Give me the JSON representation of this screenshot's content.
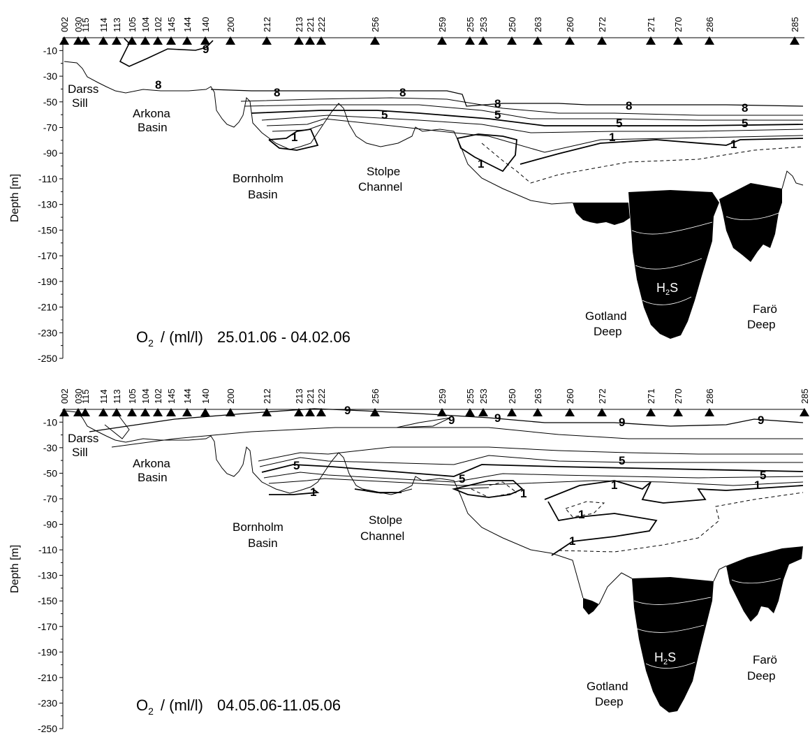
{
  "chart_data": [
    {
      "type": "contour-section",
      "caption": "25.01.06 - 04.02.06",
      "caption_lead": "O",
      "caption_sub": "2",
      "caption_unit": "/  (ml/l)",
      "ylabel": "Depth [m]",
      "ylim": [
        -250,
        0
      ],
      "yticks": [
        -10,
        -30,
        -50,
        -70,
        -90,
        -110,
        -130,
        -150,
        -170,
        -190,
        -210,
        -230,
        -250
      ],
      "stations": [
        "002",
        "030",
        "115",
        "114",
        "113",
        "105",
        "104",
        "102",
        "145",
        "144",
        "140",
        "200",
        "212",
        "213",
        "221",
        "222",
        "256",
        "259",
        "255",
        "253",
        "250",
        "263",
        "260",
        "272",
        "271",
        "270",
        "286",
        "285"
      ],
      "region_labels": {
        "darss_1": "Darss",
        "darss_2": "Sill",
        "arkona_1": "Arkona",
        "arkona_2": "Basin",
        "bornholm_1": "Bornholm",
        "bornholm_2": "Basin",
        "stolpe_1": "Stolpe",
        "stolpe_2": "Channel",
        "gotland_1": "Gotland",
        "gotland_2": "Deep",
        "faro_1": "Farö",
        "faro_2": "Deep",
        "h2s_main": "H",
        "h2s_sub": "2",
        "h2s_end": "S"
      },
      "contour_labels": {
        "l9": "9",
        "l8a": "8",
        "l8b": "8",
        "l8c": "8",
        "l8d": "8",
        "l8e": "8",
        "l8f": "8",
        "l5a": "5",
        "l5b": "5",
        "l5c": "5",
        "l5d": "5",
        "l1a": "1",
        "l1b": "1",
        "l1c": "1",
        "l1d": "1"
      }
    },
    {
      "type": "contour-section",
      "caption": "04.05.06-11.05.06",
      "caption_lead": "O",
      "caption_sub": "2",
      "caption_unit": "/  (ml/l)",
      "ylabel": "Depth [m]",
      "ylim": [
        -250,
        0
      ],
      "yticks": [
        -10,
        -30,
        -50,
        -70,
        -90,
        -110,
        -130,
        -150,
        -170,
        -190,
        -210,
        -230,
        -250
      ],
      "stations": [
        "002",
        "030",
        "115",
        "114",
        "113",
        "105",
        "104",
        "102",
        "145",
        "144",
        "140",
        "200",
        "212",
        "213",
        "221",
        "222",
        "256",
        "259",
        "255",
        "253",
        "250",
        "263",
        "260",
        "272",
        "271",
        "270",
        "286",
        "285"
      ],
      "region_labels": {
        "darss_1": "Darss",
        "darss_2": "Sill",
        "arkona_1": "Arkona",
        "arkona_2": "Basin",
        "bornholm_1": "Bornholm",
        "bornholm_2": "Basin",
        "stolpe_1": "Stolpe",
        "stolpe_2": "Channel",
        "gotland_1": "Gotland",
        "gotland_2": "Deep",
        "faro_1": "Farö",
        "faro_2": "Deep",
        "h2s_main": "H",
        "h2s_sub": "2",
        "h2s_end": "S"
      },
      "contour_labels": {
        "l9a": "9",
        "l9b": "9",
        "l9c": "9",
        "l9d": "9",
        "l9e": "9",
        "l5a": "5",
        "l5b": "5",
        "l5c": "5",
        "l1a": "1",
        "l1b": "1",
        "l1c": "1",
        "l1d": "1",
        "l1e": "1"
      }
    }
  ]
}
